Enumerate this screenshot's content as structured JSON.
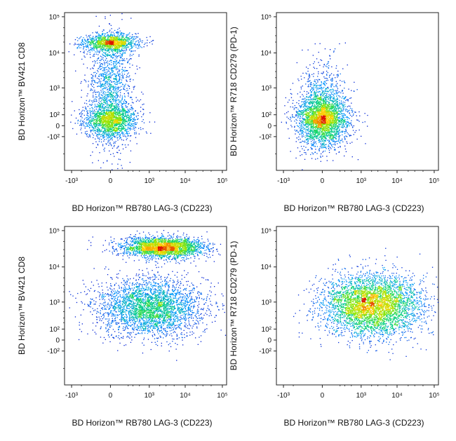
{
  "chart_data": [
    {
      "type": "scatter",
      "xlabel": "BD Horizon™ RB780 LAG-3 (CD223)",
      "ylabel": "BD Horizon™ BV421 CD8",
      "x_ticks": [
        "-10³",
        "0",
        "10³",
        "10⁴",
        "10⁵"
      ],
      "y_ticks": [
        "10⁵",
        "10⁴",
        "10³",
        "10²",
        "0",
        "-10²"
      ],
      "scale": "biexponential",
      "populations": [
        {
          "x": 0,
          "y": 20000,
          "relative_density": 0.45
        },
        {
          "x": 0,
          "y": 30,
          "relative_density": 0.55
        }
      ]
    },
    {
      "type": "scatter",
      "xlabel": "BD Horizon™ RB780 LAG-3 (CD223)",
      "ylabel": "BD Horizon™ R718 CD279 (PD-1)",
      "x_ticks": [
        "-10³",
        "0",
        "10³",
        "10⁴",
        "10⁵"
      ],
      "y_ticks": [
        "10⁵",
        "10⁴",
        "10³",
        "10²",
        "0",
        "-10²"
      ],
      "scale": "biexponential",
      "populations": [
        {
          "x": 0,
          "y": 20,
          "relative_density": 1.0
        }
      ]
    },
    {
      "type": "scatter",
      "xlabel": "BD Horizon™ RB780 LAG-3 (CD223)",
      "ylabel": "BD Horizon™ BV421 CD8",
      "x_ticks": [
        "-10³",
        "0",
        "10³",
        "10⁴",
        "10⁵"
      ],
      "y_ticks": [
        "10⁵",
        "10⁴",
        "10³",
        "10²",
        "0",
        "-10²"
      ],
      "scale": "biexponential",
      "populations": [
        {
          "x": 2500,
          "y": 35000,
          "relative_density": 0.45
        },
        {
          "x": 1000,
          "y": 700,
          "relative_density": 0.55
        }
      ]
    },
    {
      "type": "scatter",
      "xlabel": "BD Horizon™ RB780 LAG-3 (CD223)",
      "ylabel": "BD Horizon™ R718 CD279 (PD-1)",
      "x_ticks": [
        "-10³",
        "0",
        "10³",
        "10⁴",
        "10⁵"
      ],
      "y_ticks": [
        "10⁵",
        "10⁴",
        "10³",
        "10²",
        "0",
        "-10²"
      ],
      "scale": "biexponential",
      "populations": [
        {
          "x": 2000,
          "y": 800,
          "relative_density": 1.0
        }
      ]
    }
  ]
}
